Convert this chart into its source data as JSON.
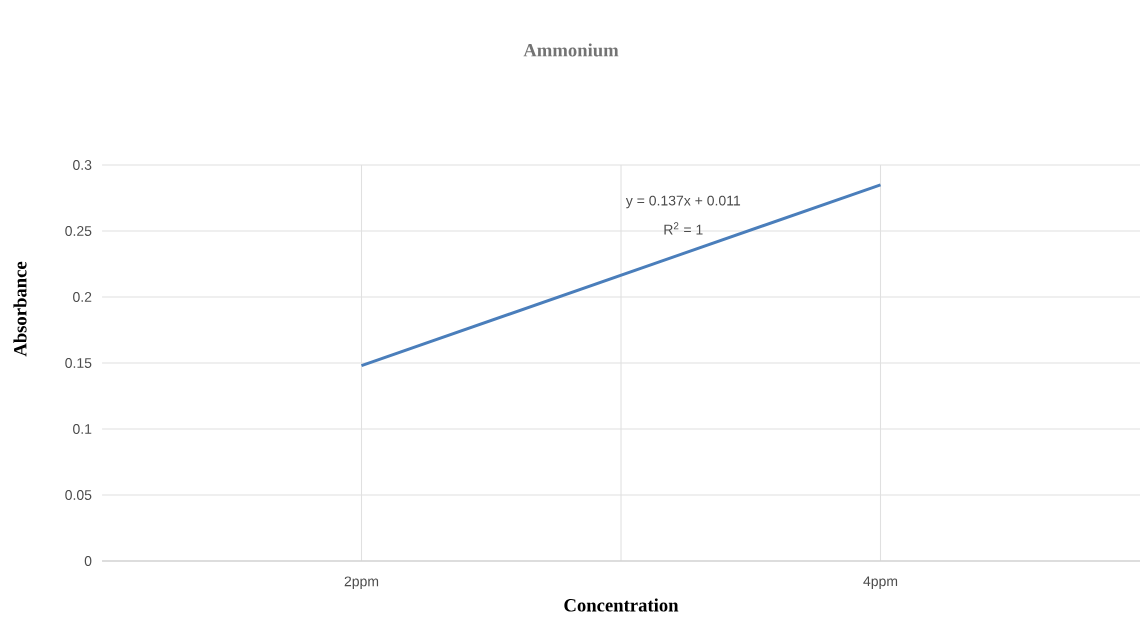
{
  "chart_data": {
    "type": "line",
    "title": "Ammonium",
    "xlabel": "Concentration",
    "ylabel": "Absorbance",
    "categories": [
      "2ppm",
      "4ppm"
    ],
    "series": [
      {
        "color": "#4a7ebb",
        "values": [
          0.148,
          0.285
        ]
      }
    ],
    "ylim": [
      0,
      0.3
    ],
    "yticks": [
      0,
      0.05,
      0.1,
      0.15,
      0.2,
      0.25,
      0.3
    ],
    "annotations": [
      "y = 0.137x + 0.011",
      "R$^{2}$ = 1"
    ],
    "grid": true,
    "marker": "none",
    "line_style": "solid"
  }
}
